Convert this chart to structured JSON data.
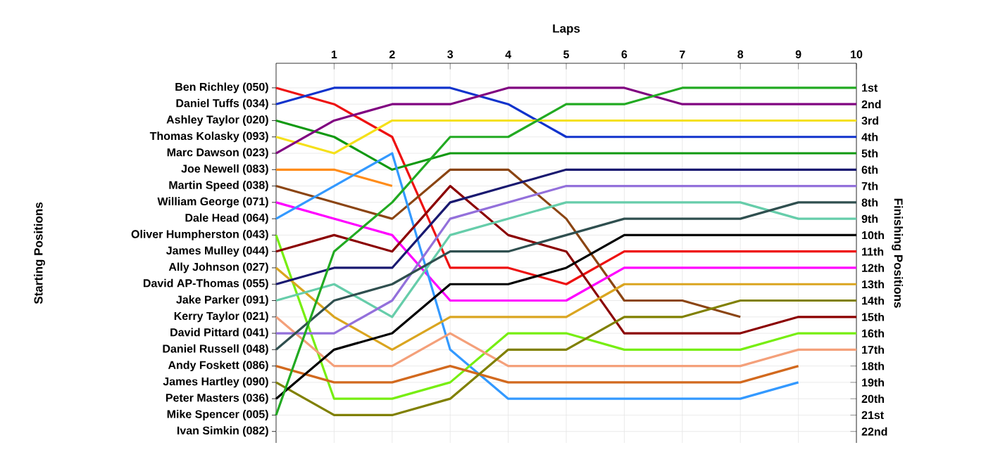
{
  "chart_data": {
    "type": "line",
    "xlabel": "Laps",
    "y2label": "Finishing Positions",
    "x": [
      0,
      1,
      2,
      3,
      4,
      5,
      6,
      7,
      8,
      9,
      10
    ],
    "xlim": [
      0,
      10
    ],
    "xticks": [
      1,
      2,
      3,
      4,
      5,
      6,
      7,
      8,
      9,
      10
    ],
    "y2lim": [
      22.7,
      -0.5
    ],
    "y2ticks": [
      {
        "value": 1,
        "label": "1st"
      },
      {
        "value": 2,
        "label": "2nd"
      },
      {
        "value": 3,
        "label": "3rd"
      },
      {
        "value": 4,
        "label": "4th"
      },
      {
        "value": 5,
        "label": "5th"
      },
      {
        "value": 6,
        "label": "6th"
      },
      {
        "value": 7,
        "label": "7th"
      },
      {
        "value": 8,
        "label": "8th"
      },
      {
        "value": 9,
        "label": "9th"
      },
      {
        "value": 10,
        "label": "10th"
      },
      {
        "value": 11,
        "label": "11th"
      },
      {
        "value": 12,
        "label": "12th"
      },
      {
        "value": 13,
        "label": "13th"
      },
      {
        "value": 14,
        "label": "14th"
      },
      {
        "value": 15,
        "label": "15th"
      },
      {
        "value": 16,
        "label": "16th"
      },
      {
        "value": 17,
        "label": "17th"
      },
      {
        "value": 18,
        "label": "18th"
      },
      {
        "value": 19,
        "label": "19th"
      },
      {
        "value": 20,
        "label": "20th"
      },
      {
        "value": 21,
        "label": "21st"
      },
      {
        "value": 22,
        "label": "22nd"
      }
    ],
    "annotations": [
      "Ben Richley (050)",
      "Daniel Tuffs (034)",
      "Ashley Taylor (020)",
      "Thomas Kolasky (093)",
      "Marc Dawson (023)",
      "Joe Newell (083)",
      "Martin Speed (038)",
      "William George (071)",
      "Dale Head (064)",
      "Oliver Humpherston (043)",
      "James Mulley (044)",
      "Ally Johnson (027)",
      "David AP-Thomas (055)",
      "Jake Parker (091)",
      "Kerry Taylor (021)",
      "David Pittard (041)",
      "Daniel Russell (048)",
      "Andy Foskett (086)",
      "James Hartley (090)",
      "Peter Masters (036)",
      "Mike Spencer (005)",
      "Ivan Simkin (082)",
      "Starting Positions"
    ],
    "grid": true,
    "series": [
      {
        "axis": "y2",
        "color": "#ee1111",
        "values": [
          1,
          2,
          4,
          12,
          12,
          13,
          11,
          11,
          11,
          11,
          11
        ]
      },
      {
        "axis": "y2",
        "color": "#1133cc",
        "values": [
          2,
          1,
          1,
          1,
          2,
          4,
          4,
          4,
          4,
          4,
          4
        ]
      },
      {
        "axis": "y2",
        "color": "#119911",
        "values": [
          3,
          4,
          6,
          5,
          5,
          5,
          5,
          5,
          5,
          5,
          5
        ]
      },
      {
        "axis": "y2",
        "color": "#f5e01a",
        "values": [
          4,
          5,
          3,
          3,
          3,
          3,
          3,
          3,
          3,
          3,
          3
        ]
      },
      {
        "axis": "y2",
        "color": "#800080",
        "values": [
          5,
          3,
          2,
          2,
          1,
          1,
          1,
          2,
          2,
          2,
          2
        ]
      },
      {
        "axis": "y2",
        "color": "#ff8c1a",
        "values": [
          6,
          6,
          7,
          null,
          null,
          null,
          null,
          null,
          null,
          null,
          null
        ]
      },
      {
        "axis": "y2",
        "color": "#8b4513",
        "values": [
          7,
          8,
          9,
          6,
          6,
          9,
          14,
          14,
          15,
          null,
          null
        ]
      },
      {
        "axis": "y2",
        "color": "#ff00ff",
        "values": [
          8,
          9,
          10,
          14,
          14,
          14,
          12,
          12,
          12,
          12,
          12
        ]
      },
      {
        "axis": "y2",
        "color": "#3399ff",
        "values": [
          9,
          7,
          5,
          17,
          20,
          20,
          20,
          20,
          20,
          19,
          null
        ]
      },
      {
        "axis": "y2",
        "color": "#77ee11",
        "values": [
          10,
          20,
          20,
          19,
          16,
          16,
          17,
          17,
          17,
          16,
          16
        ]
      },
      {
        "axis": "y2",
        "color": "#8b0000",
        "values": [
          11,
          10,
          11,
          7,
          10,
          11,
          16,
          16,
          16,
          15,
          15
        ]
      },
      {
        "axis": "y2",
        "color": "#daa520",
        "values": [
          12,
          15,
          17,
          15,
          15,
          15,
          13,
          13,
          13,
          13,
          13
        ]
      },
      {
        "axis": "y2",
        "color": "#191970",
        "values": [
          13,
          12,
          12,
          8,
          7,
          6,
          6,
          6,
          6,
          6,
          6
        ]
      },
      {
        "axis": "y2",
        "color": "#66cdaa",
        "values": [
          14,
          13,
          15,
          10,
          9,
          8,
          8,
          8,
          8,
          9,
          9
        ]
      },
      {
        "axis": "y2",
        "color": "#f4a07a",
        "values": [
          15,
          18,
          18,
          16,
          18,
          18,
          18,
          18,
          18,
          17,
          17
        ]
      },
      {
        "axis": "y2",
        "color": "#9370db",
        "values": [
          16,
          16,
          14,
          9,
          8,
          7,
          7,
          7,
          7,
          7,
          7
        ]
      },
      {
        "axis": "y2",
        "color": "#2f4f4f",
        "values": [
          17,
          14,
          13,
          11,
          11,
          10,
          9,
          9,
          9,
          8,
          8
        ]
      },
      {
        "axis": "y2",
        "color": "#d2691e",
        "values": [
          18,
          19,
          19,
          18,
          19,
          19,
          19,
          19,
          19,
          18,
          null
        ]
      },
      {
        "axis": "y2",
        "color": "#808000",
        "values": [
          19,
          21,
          21,
          20,
          17,
          17,
          15,
          15,
          14,
          14,
          14
        ]
      },
      {
        "axis": "y2",
        "color": "#000000",
        "values": [
          20,
          17,
          16,
          13,
          13,
          12,
          10,
          10,
          10,
          10,
          10
        ]
      },
      {
        "axis": "y2",
        "color": "#22aa22",
        "values": [
          21,
          11,
          8,
          4,
          4,
          2,
          2,
          1,
          1,
          1,
          1
        ]
      }
    ]
  }
}
